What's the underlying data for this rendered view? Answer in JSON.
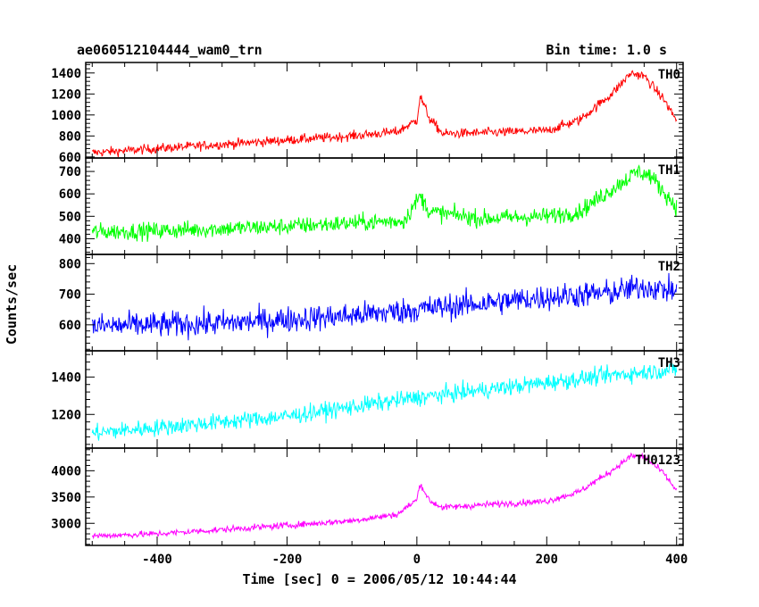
{
  "chart_data": {
    "type": "line",
    "title": "ae060512104444_wam0_trn",
    "subtitle": "Bin time: 1.0 s",
    "xlabel": "Time [sec] 0 = 2006/05/12 10:44:44",
    "ylabel": "Counts/sec",
    "xlim": [
      -510,
      410
    ],
    "xticks": [
      -400,
      -200,
      0,
      200,
      400
    ],
    "grid": false,
    "legend": "none",
    "panels": [
      {
        "name": "TH0",
        "color": "#ff0000",
        "ylim": [
          590,
          1500
        ],
        "yticks": [
          600,
          800,
          1000,
          1200,
          1400
        ],
        "x": [
          -500,
          -400,
          -300,
          -200,
          -100,
          -30,
          0,
          5,
          20,
          40,
          100,
          200,
          250,
          300,
          330,
          350,
          380,
          400
        ],
        "values": [
          640,
          680,
          720,
          760,
          800,
          840,
          950,
          1180,
          960,
          820,
          830,
          850,
          950,
          1200,
          1400,
          1370,
          1150,
          950
        ],
        "noise": 45
      },
      {
        "name": "TH1",
        "color": "#00ff00",
        "ylim": [
          330,
          760
        ],
        "yticks": [
          400,
          500,
          600,
          700
        ],
        "x": [
          -500,
          -400,
          -300,
          -200,
          -100,
          -20,
          5,
          20,
          100,
          200,
          250,
          300,
          340,
          360,
          400
        ],
        "values": [
          430,
          435,
          445,
          455,
          470,
          480,
          590,
          520,
          490,
          500,
          520,
          620,
          700,
          680,
          540
        ],
        "noise": 38
      },
      {
        "name": "TH2",
        "color": "#0000ff",
        "ylim": [
          515,
          830
        ],
        "yticks": [
          600,
          700,
          800
        ],
        "x": [
          -500,
          -300,
          -100,
          0,
          100,
          200,
          300,
          350,
          400
        ],
        "values": [
          595,
          605,
          630,
          650,
          670,
          690,
          705,
          725,
          710
        ],
        "noise": 42
      },
      {
        "name": "TH3",
        "color": "#00ffff",
        "ylim": [
          1020,
          1540
        ],
        "yticks": [
          1200,
          1400
        ],
        "x": [
          -500,
          -400,
          -200,
          0,
          200,
          300,
          400
        ],
        "values": [
          1100,
          1130,
          1190,
          1290,
          1370,
          1410,
          1440
        ],
        "noise": 45
      },
      {
        "name": "TH0123",
        "color": "#ff00ff",
        "ylim": [
          2580,
          4430
        ],
        "yticks": [
          3000,
          3500,
          4000
        ],
        "x": [
          -500,
          -400,
          -300,
          -200,
          -100,
          -30,
          0,
          5,
          20,
          40,
          100,
          200,
          250,
          300,
          330,
          350,
          380,
          400
        ],
        "values": [
          2760,
          2800,
          2880,
          2960,
          3050,
          3170,
          3450,
          3760,
          3420,
          3300,
          3350,
          3420,
          3600,
          4000,
          4280,
          4270,
          3950,
          3620
        ],
        "noise": 60
      }
    ]
  }
}
